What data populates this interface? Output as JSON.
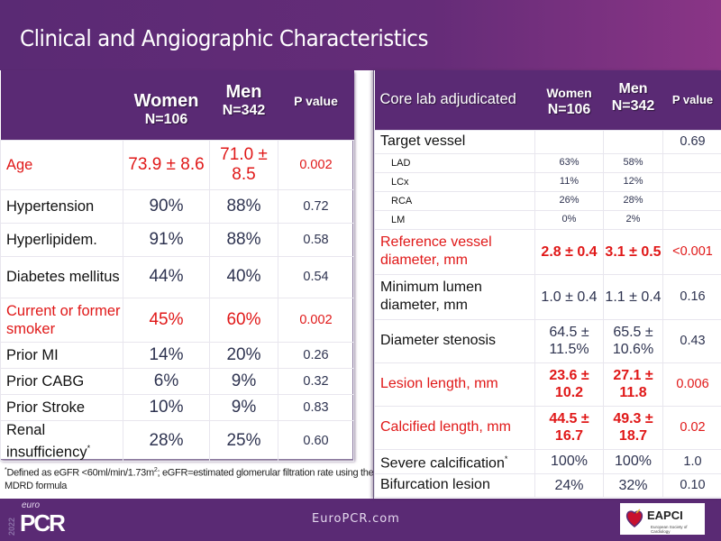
{
  "title": "Clinical and Angiographic Characteristics",
  "left_table": {
    "headers": {
      "label": "",
      "women": "Women",
      "women_n": "N=106",
      "men": "Men",
      "men_n": "N=342",
      "p": "P value"
    },
    "rows": [
      {
        "label": "Age",
        "women": "73.9 ± 8.6",
        "men": "71.0 ± 8.5",
        "p": "0.002",
        "highlight": true
      },
      {
        "label": "Hypertension",
        "women": "90%",
        "men": "88%",
        "p": "0.72",
        "highlight": false
      },
      {
        "label": "Hyperlipidem.",
        "women": "91%",
        "men": "88%",
        "p": "0.58",
        "highlight": false
      },
      {
        "label": "Diabetes mellitus",
        "women": "44%",
        "men": "40%",
        "p": "0.54",
        "highlight": false
      },
      {
        "label": "Current or former smoker",
        "women": "45%",
        "men": "60%",
        "p": "0.002",
        "highlight": true
      },
      {
        "label": "Prior MI",
        "women": "14%",
        "men": "20%",
        "p": "0.26",
        "highlight": false
      },
      {
        "label": "Prior CABG",
        "women": "6%",
        "men": "9%",
        "p": "0.32",
        "highlight": false
      },
      {
        "label": "Prior Stroke",
        "women": "10%",
        "men": "9%",
        "p": "0.83",
        "highlight": false
      },
      {
        "label": "Renal insufficiency",
        "label_sup": "*",
        "women": "28%",
        "men": "25%",
        "p": "0.60",
        "highlight": false
      }
    ]
  },
  "right_table": {
    "headers": {
      "label": "Core lab adjudicated",
      "women": "Women",
      "women_n": "N=106",
      "men": "Men",
      "men_n": "N=342",
      "p": "P value"
    },
    "rows": [
      {
        "label": "Target vessel",
        "women": "",
        "men": "",
        "p": "0.69",
        "highlight": false,
        "sub": false
      },
      {
        "label": "LAD",
        "women": "63%",
        "men": "58%",
        "p": "",
        "highlight": false,
        "sub": true
      },
      {
        "label": "LCx",
        "women": "11%",
        "men": "12%",
        "p": "",
        "highlight": false,
        "sub": true
      },
      {
        "label": "RCA",
        "women": "26%",
        "men": "28%",
        "p": "",
        "highlight": false,
        "sub": true
      },
      {
        "label": "LM",
        "women": "0%",
        "men": "2%",
        "p": "",
        "highlight": false,
        "sub": true
      },
      {
        "label": "Reference vessel diameter, mm",
        "women": "2.8 ± 0.4",
        "men": "3.1 ± 0.5",
        "p": "<0.001",
        "highlight": true,
        "sub": false
      },
      {
        "label": "Minimum lumen diameter, mm",
        "women": "1.0 ± 0.4",
        "men": "1.1 ± 0.4",
        "p": "0.16",
        "highlight": false,
        "sub": false
      },
      {
        "label": "Diameter stenosis",
        "women": "64.5 ± 11.5%",
        "men": "65.5 ± 10.6%",
        "p": "0.43",
        "highlight": false,
        "sub": false
      },
      {
        "label": "Lesion length, mm",
        "women": "23.6 ± 10.2",
        "men": "27.1 ± 11.8",
        "p": "0.006",
        "highlight": true,
        "sub": false
      },
      {
        "label": "Calcified length, mm",
        "women": "44.5 ± 16.7",
        "men": "49.3 ± 18.7",
        "p": "0.02",
        "highlight": true,
        "sub": false
      },
      {
        "label": "Severe calcification",
        "label_sup": "*",
        "women": "100%",
        "men": "100%",
        "p": "1.0",
        "highlight": false,
        "sub": false
      },
      {
        "label": "Bifurcation lesion",
        "women": "24%",
        "men": "32%",
        "p": "0.10",
        "highlight": false,
        "sub": false
      }
    ]
  },
  "footnote": {
    "marker": "*",
    "text_a": "Defined as eGFR <60ml/min/1.73m",
    "sup": "2",
    "text_b": "; eGFR=estimated glomerular filtration rate using the MDRD formula"
  },
  "footer": {
    "logo_year": "2022",
    "logo_euro": "euro",
    "logo_pcr": "PCR",
    "url": "EuroPCR.com",
    "partner_logo": "EAPCI",
    "partner_sub": "European Society of Cardiology"
  },
  "colors": {
    "brand_purple": "#5a2a74",
    "highlight_red": "#e01818",
    "value_navy": "#2e3350"
  }
}
